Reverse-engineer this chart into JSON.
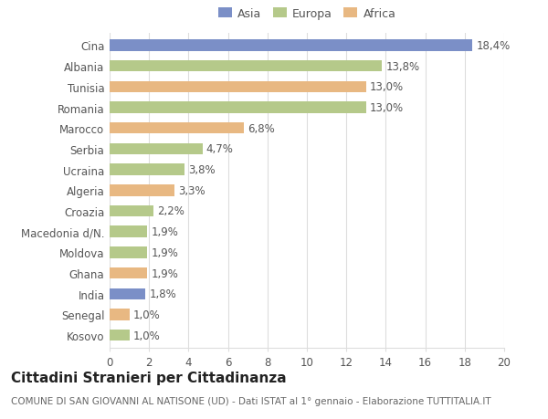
{
  "categories": [
    "Cina",
    "Albania",
    "Tunisia",
    "Romania",
    "Marocco",
    "Serbia",
    "Ucraina",
    "Algeria",
    "Croazia",
    "Macedonia d/N.",
    "Moldova",
    "Ghana",
    "India",
    "Senegal",
    "Kosovo"
  ],
  "values": [
    18.4,
    13.8,
    13.0,
    13.0,
    6.8,
    4.7,
    3.8,
    3.3,
    2.2,
    1.9,
    1.9,
    1.9,
    1.8,
    1.0,
    1.0
  ],
  "labels": [
    "18,4%",
    "13,8%",
    "13,0%",
    "13,0%",
    "6,8%",
    "4,7%",
    "3,8%",
    "3,3%",
    "2,2%",
    "1,9%",
    "1,9%",
    "1,9%",
    "1,8%",
    "1,0%",
    "1,0%"
  ],
  "colors": [
    "#7b8fc7",
    "#b5c98a",
    "#e8b882",
    "#b5c98a",
    "#e8b882",
    "#b5c98a",
    "#b5c98a",
    "#e8b882",
    "#b5c98a",
    "#b5c98a",
    "#b5c98a",
    "#e8b882",
    "#7b8fc7",
    "#e8b882",
    "#b5c98a"
  ],
  "legend_labels": [
    "Asia",
    "Europa",
    "Africa"
  ],
  "legend_colors": [
    "#7b8fc7",
    "#b5c98a",
    "#e8b882"
  ],
  "title": "Cittadini Stranieri per Cittadinanza",
  "subtitle": "COMUNE DI SAN GIOVANNI AL NATISONE (UD) - Dati ISTAT al 1° gennaio - Elaborazione TUTTITALIA.IT",
  "xlim": [
    0,
    20
  ],
  "xticks": [
    0,
    2,
    4,
    6,
    8,
    10,
    12,
    14,
    16,
    18,
    20
  ],
  "background_color": "#ffffff",
  "grid_color": "#dddddd",
  "bar_height": 0.55,
  "label_fontsize": 8.5,
  "tick_fontsize": 8.5,
  "title_fontsize": 11,
  "subtitle_fontsize": 7.5
}
